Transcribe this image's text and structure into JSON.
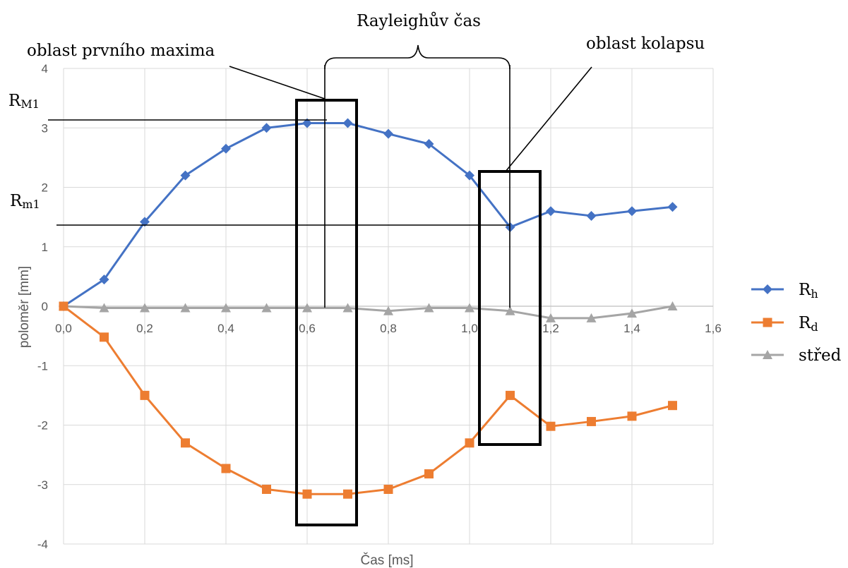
{
  "chart_data": {
    "type": "line",
    "xlabel": "Čas [ms]",
    "ylabel": "poloměr [mm]",
    "xlim": [
      0,
      1.6
    ],
    "ylim": [
      -4,
      4
    ],
    "xticks": [
      0,
      0.2,
      0.4,
      0.6,
      0.8,
      1.0,
      1.2,
      1.4,
      1.6
    ],
    "xtick_labels": [
      "0,0",
      "0,2",
      "0,4",
      "0,6",
      "0,8",
      "1,0",
      "1,2",
      "1,4",
      "1,6"
    ],
    "yticks": [
      4,
      3,
      2,
      1,
      0,
      -1,
      -2,
      -3,
      -4
    ],
    "ytick_labels": [
      "4",
      "3",
      "2",
      "1",
      "0",
      "-1",
      "-2",
      "-3",
      "-4"
    ],
    "grid": true,
    "legend_position": "right",
    "x": [
      0,
      0.1,
      0.2,
      0.3,
      0.4,
      0.5,
      0.6,
      0.7,
      0.8,
      0.9,
      1.0,
      1.1,
      1.2,
      1.3,
      1.4,
      1.5
    ],
    "series": [
      {
        "name": "Rh",
        "name_main": "R",
        "name_sub": "h",
        "marker": "diamond",
        "color": "#4472C4",
        "values": [
          0,
          0.45,
          1.42,
          2.2,
          2.65,
          3.0,
          3.08,
          3.08,
          2.9,
          2.73,
          2.2,
          1.33,
          1.6,
          1.52,
          1.6,
          1.67
        ]
      },
      {
        "name": "Rd",
        "name_main": "R",
        "name_sub": "d",
        "marker": "square",
        "color": "#ED7D31",
        "values": [
          0,
          -0.52,
          -1.5,
          -2.3,
          -2.73,
          -3.08,
          -3.16,
          -3.16,
          -3.08,
          -2.82,
          -2.3,
          -1.5,
          -2.02,
          -1.94,
          -1.85,
          -1.67
        ]
      },
      {
        "name": "střed",
        "name_main": "střed",
        "name_sub": "",
        "marker": "triangle",
        "color": "#A5A5A5",
        "values": [
          0,
          -0.03,
          -0.03,
          -0.03,
          -0.03,
          -0.03,
          -0.03,
          -0.03,
          -0.08,
          -0.03,
          -0.03,
          -0.08,
          -0.2,
          -0.2,
          -0.12,
          0
        ]
      }
    ],
    "annotations": {
      "rayleigh": "Rayleighův čas",
      "first_max": "oblast prvního maxima",
      "collapse": "oblast kolapsu",
      "rm1_upper_main": "R",
      "rm1_upper_sub": "M1",
      "rm1_lower_main": "R",
      "rm1_lower_sub": "m1"
    }
  }
}
